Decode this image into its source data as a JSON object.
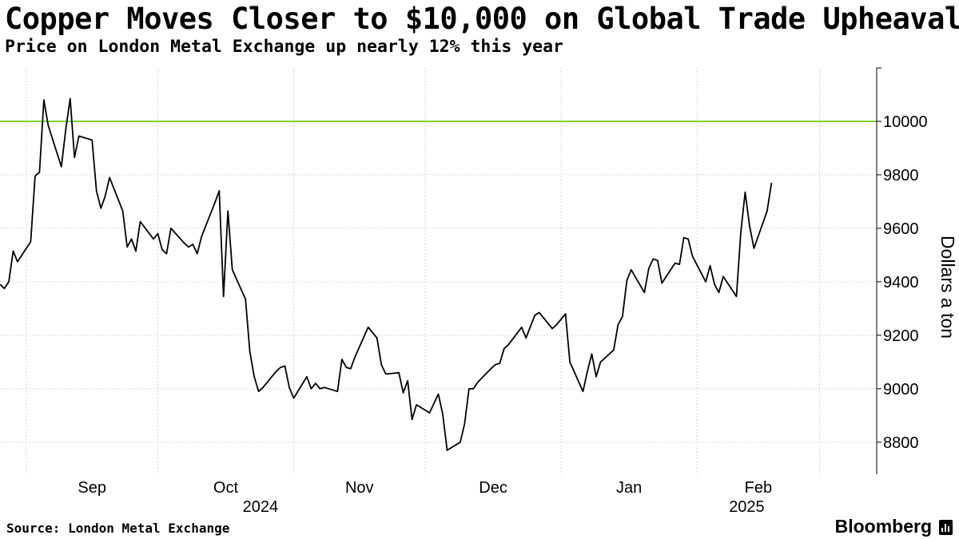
{
  "header": {
    "title": "Copper Moves Closer to $10,000 on Global Trade Upheaval",
    "subtitle": "Price on London Metal Exchange up nearly 12% this year"
  },
  "footer": {
    "source": "Source: London Metal Exchange",
    "brand": "Bloomberg"
  },
  "colors": {
    "line": "#000000",
    "reference_line": "#7dd321",
    "grid": "#c8c8c8"
  },
  "chart_data": {
    "type": "line",
    "x_axis": {
      "month_labels": [
        "Sep",
        "Oct",
        "Nov",
        "Dec",
        "Jan",
        "Feb"
      ],
      "year_labels": [
        "2024",
        "2025"
      ],
      "range": [
        "2024-08-26",
        "2025-03-14"
      ]
    },
    "y_axis": {
      "label": "Dollars a ton",
      "ticks": [
        8800,
        9000,
        9200,
        9400,
        9600,
        9800,
        10000
      ],
      "range": [
        8680,
        10200
      ],
      "position": "right"
    },
    "grid": true,
    "reference_line": {
      "value": 10000
    },
    "series": [
      {
        "values": [
          [
            "2024-08-26",
            9390
          ],
          [
            "2024-08-27",
            9375
          ],
          [
            "2024-08-28",
            9400
          ],
          [
            "2024-08-29",
            9515
          ],
          [
            "2024-08-30",
            9475
          ],
          [
            "2024-09-02",
            9550
          ],
          [
            "2024-09-03",
            9795
          ],
          [
            "2024-09-04",
            9810
          ],
          [
            "2024-09-05",
            10080
          ],
          [
            "2024-09-06",
            9985
          ],
          [
            "2024-09-09",
            9830
          ],
          [
            "2024-09-10",
            9970
          ],
          [
            "2024-09-11",
            10085
          ],
          [
            "2024-09-12",
            9865
          ],
          [
            "2024-09-13",
            9945
          ],
          [
            "2024-09-16",
            9930
          ],
          [
            "2024-09-17",
            9740
          ],
          [
            "2024-09-18",
            9675
          ],
          [
            "2024-09-19",
            9720
          ],
          [
            "2024-09-20",
            9790
          ],
          [
            "2024-09-23",
            9665
          ],
          [
            "2024-09-24",
            9530
          ],
          [
            "2024-09-25",
            9560
          ],
          [
            "2024-09-26",
            9515
          ],
          [
            "2024-09-27",
            9625
          ],
          [
            "2024-09-30",
            9560
          ],
          [
            "2024-10-01",
            9580
          ],
          [
            "2024-10-02",
            9520
          ],
          [
            "2024-10-03",
            9505
          ],
          [
            "2024-10-04",
            9600
          ],
          [
            "2024-10-07",
            9545
          ],
          [
            "2024-10-08",
            9530
          ],
          [
            "2024-10-09",
            9540
          ],
          [
            "2024-10-10",
            9505
          ],
          [
            "2024-10-11",
            9570
          ],
          [
            "2024-10-14",
            9695
          ],
          [
            "2024-10-15",
            9740
          ],
          [
            "2024-10-16",
            9345
          ],
          [
            "2024-10-17",
            9665
          ],
          [
            "2024-10-18",
            9445
          ],
          [
            "2024-10-21",
            9335
          ],
          [
            "2024-10-22",
            9140
          ],
          [
            "2024-10-23",
            9045
          ],
          [
            "2024-10-24",
            8990
          ],
          [
            "2024-10-25",
            9005
          ],
          [
            "2024-10-28",
            9065
          ],
          [
            "2024-10-29",
            9080
          ],
          [
            "2024-10-30",
            9085
          ],
          [
            "2024-10-31",
            9005
          ],
          [
            "2024-11-01",
            8965
          ],
          [
            "2024-11-04",
            9045
          ],
          [
            "2024-11-05",
            9000
          ],
          [
            "2024-11-06",
            9020
          ],
          [
            "2024-11-07",
            9000
          ],
          [
            "2024-11-08",
            9005
          ],
          [
            "2024-11-11",
            8990
          ],
          [
            "2024-11-12",
            9110
          ],
          [
            "2024-11-13",
            9080
          ],
          [
            "2024-11-14",
            9075
          ],
          [
            "2024-11-15",
            9120
          ],
          [
            "2024-11-18",
            9230
          ],
          [
            "2024-11-19",
            9210
          ],
          [
            "2024-11-20",
            9190
          ],
          [
            "2024-11-21",
            9090
          ],
          [
            "2024-11-22",
            9055
          ],
          [
            "2024-11-25",
            9060
          ],
          [
            "2024-11-26",
            8985
          ],
          [
            "2024-11-27",
            9030
          ],
          [
            "2024-11-28",
            8885
          ],
          [
            "2024-11-29",
            8940
          ],
          [
            "2024-12-02",
            8910
          ],
          [
            "2024-12-03",
            8945
          ],
          [
            "2024-12-04",
            8980
          ],
          [
            "2024-12-05",
            8905
          ],
          [
            "2024-12-06",
            8770
          ],
          [
            "2024-12-09",
            8800
          ],
          [
            "2024-12-10",
            8870
          ],
          [
            "2024-12-11",
            9000
          ],
          [
            "2024-12-12",
            9000
          ],
          [
            "2024-12-13",
            9025
          ],
          [
            "2024-12-16",
            9075
          ],
          [
            "2024-12-17",
            9090
          ],
          [
            "2024-12-18",
            9095
          ],
          [
            "2024-12-19",
            9150
          ],
          [
            "2024-12-20",
            9165
          ],
          [
            "2024-12-23",
            9230
          ],
          [
            "2024-12-24",
            9190
          ],
          [
            "2024-12-26",
            9275
          ],
          [
            "2024-12-27",
            9285
          ],
          [
            "2024-12-30",
            9225
          ],
          [
            "2024-12-31",
            9240
          ],
          [
            "2025-01-02",
            9280
          ],
          [
            "2025-01-03",
            9100
          ],
          [
            "2025-01-06",
            8990
          ],
          [
            "2025-01-07",
            9065
          ],
          [
            "2025-01-08",
            9130
          ],
          [
            "2025-01-09",
            9045
          ],
          [
            "2025-01-10",
            9100
          ],
          [
            "2025-01-13",
            9145
          ],
          [
            "2025-01-14",
            9240
          ],
          [
            "2025-01-15",
            9270
          ],
          [
            "2025-01-16",
            9405
          ],
          [
            "2025-01-17",
            9445
          ],
          [
            "2025-01-20",
            9360
          ],
          [
            "2025-01-21",
            9450
          ],
          [
            "2025-01-22",
            9485
          ],
          [
            "2025-01-23",
            9480
          ],
          [
            "2025-01-24",
            9395
          ],
          [
            "2025-01-27",
            9470
          ],
          [
            "2025-01-28",
            9465
          ],
          [
            "2025-01-29",
            9565
          ],
          [
            "2025-01-30",
            9560
          ],
          [
            "2025-01-31",
            9495
          ],
          [
            "2025-02-03",
            9400
          ],
          [
            "2025-02-04",
            9460
          ],
          [
            "2025-02-05",
            9390
          ],
          [
            "2025-02-06",
            9360
          ],
          [
            "2025-02-07",
            9420
          ],
          [
            "2025-02-10",
            9345
          ],
          [
            "2025-02-11",
            9585
          ],
          [
            "2025-02-12",
            9735
          ],
          [
            "2025-02-13",
            9610
          ],
          [
            "2025-02-14",
            9525
          ],
          [
            "2025-02-17",
            9665
          ],
          [
            "2025-02-18",
            9770
          ]
        ]
      }
    ]
  }
}
